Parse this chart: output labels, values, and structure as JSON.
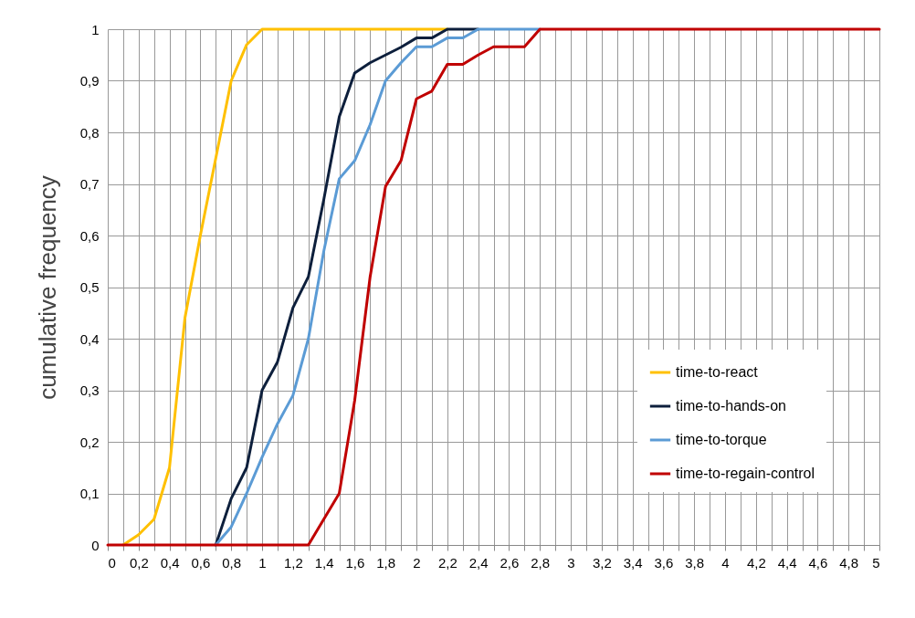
{
  "chart_data": {
    "type": "line",
    "ylabel": "cumulative frequency",
    "x": [
      0,
      0.1,
      0.2,
      0.3,
      0.4,
      0.5,
      0.6,
      0.7,
      0.8,
      0.9,
      1,
      1.1,
      1.2,
      1.3,
      1.4,
      1.5,
      1.6,
      1.7,
      1.8,
      1.9,
      2,
      2.1,
      2.2,
      2.3,
      2.4,
      2.5,
      2.6,
      2.7,
      2.8,
      2.9,
      3,
      3.1,
      3.2,
      3.3,
      3.4,
      3.5,
      3.6,
      3.7,
      3.8,
      3.9,
      4,
      4.1,
      4.2,
      4.3,
      4.4,
      4.5,
      4.6,
      4.7,
      4.8,
      4.9,
      5
    ],
    "series": [
      {
        "name": "time-to-react",
        "color": "#ffc000",
        "values": [
          null,
          0,
          0.02,
          0.05,
          0.15,
          0.44,
          0.6,
          0.75,
          0.9,
          0.97,
          1,
          1,
          1,
          1,
          1,
          1,
          1,
          1,
          1,
          1,
          1,
          1,
          1,
          null,
          null,
          null,
          null,
          null,
          null,
          null,
          null,
          null,
          null,
          null,
          null,
          null,
          null,
          null,
          null,
          null,
          null,
          null,
          null,
          null,
          null,
          null,
          null,
          null,
          null,
          null,
          null
        ]
      },
      {
        "name": "time-to-hands-on",
        "color": "#0d1f3c",
        "values": [
          null,
          null,
          null,
          null,
          null,
          null,
          null,
          0,
          0.09,
          0.15,
          0.3,
          0.355,
          0.46,
          0.52,
          0.67,
          0.83,
          0.915,
          0.935,
          0.95,
          0.965,
          0.983,
          0.983,
          1,
          1,
          1,
          null,
          null,
          null,
          null,
          null,
          null,
          null,
          null,
          null,
          null,
          null,
          null,
          null,
          null,
          null,
          null,
          null,
          null,
          null,
          null,
          null,
          null,
          null,
          null,
          null,
          null
        ]
      },
      {
        "name": "time-to-torque",
        "color": "#5b9bd5",
        "values": [
          null,
          null,
          null,
          null,
          null,
          null,
          null,
          0,
          0.035,
          0.1,
          0.17,
          0.235,
          0.29,
          0.4,
          0.57,
          0.71,
          0.745,
          0.815,
          0.9,
          0.935,
          0.966,
          0.966,
          0.983,
          0.983,
          1,
          1,
          1,
          1,
          1,
          null,
          null,
          null,
          null,
          null,
          null,
          null,
          null,
          null,
          null,
          null,
          null,
          null,
          null,
          null,
          null,
          null,
          null,
          null,
          null,
          null,
          null
        ]
      },
      {
        "name": "time-to-regain-control",
        "color": "#c00000",
        "values": [
          0,
          0,
          0,
          0,
          0,
          0,
          0,
          0,
          0,
          0,
          0,
          0,
          0,
          0,
          0.05,
          0.1,
          0.28,
          0.52,
          0.695,
          0.745,
          0.865,
          0.88,
          0.932,
          0.932,
          0.95,
          0.966,
          0.966,
          0.966,
          1,
          1,
          1,
          1,
          1,
          1,
          1,
          1,
          1,
          1,
          1,
          1,
          1,
          1,
          1,
          1,
          1,
          1,
          1,
          1,
          1,
          1,
          1
        ]
      }
    ],
    "xlim": [
      0,
      5
    ],
    "xticks": [
      0,
      {
        "value": 0.1,
        "label": null
      },
      {
        "value": 0.2,
        "label": "0,2"
      },
      {
        "value": 0.3,
        "label": null
      },
      {
        "value": 0.4,
        "label": "0,4"
      },
      {
        "value": 0.5,
        "label": null
      },
      {
        "value": 0.6,
        "label": "0,6"
      },
      {
        "value": 0.7,
        "label": null
      },
      {
        "value": 0.8,
        "label": "0,8"
      },
      {
        "value": 0.9,
        "label": null
      },
      1,
      {
        "value": 1.1,
        "label": null
      },
      {
        "value": 1.2,
        "label": "1,2"
      },
      {
        "value": 1.3,
        "label": null
      },
      {
        "value": 1.4,
        "label": "1,4"
      },
      {
        "value": 1.5,
        "label": null
      },
      {
        "value": 1.6,
        "label": "1,6"
      },
      {
        "value": 1.7,
        "label": null
      },
      {
        "value": 1.8,
        "label": "1,8"
      },
      {
        "value": 1.9,
        "label": null
      },
      2,
      {
        "value": 2.1,
        "label": null
      },
      {
        "value": 2.2,
        "label": "2,2"
      },
      {
        "value": 2.3,
        "label": null
      },
      {
        "value": 2.4,
        "label": "2,4"
      },
      {
        "value": 2.5,
        "label": null
      },
      {
        "value": 2.6,
        "label": "2,6"
      },
      {
        "value": 2.7,
        "label": null
      },
      {
        "value": 2.8,
        "label": "2,8"
      },
      {
        "value": 2.9,
        "label": null
      },
      3,
      {
        "value": 3.1,
        "label": null
      },
      {
        "value": 3.2,
        "label": "3,2"
      },
      {
        "value": 3.3,
        "label": null
      },
      {
        "value": 3.4,
        "label": "3,4"
      },
      {
        "value": 3.5,
        "label": null
      },
      {
        "value": 3.6,
        "label": "3,6"
      },
      {
        "value": 3.7,
        "label": null
      },
      {
        "value": 3.8,
        "label": "3,8"
      },
      {
        "value": 3.9,
        "label": null
      },
      4,
      {
        "value": 4.1,
        "label": null
      },
      {
        "value": 4.2,
        "label": "4,2"
      },
      {
        "value": 4.3,
        "label": null
      },
      {
        "value": 4.4,
        "label": "4,4"
      },
      {
        "value": 4.5,
        "label": null
      },
      {
        "value": 4.6,
        "label": "4,6"
      },
      {
        "value": 4.7,
        "label": null
      },
      {
        "value": 4.8,
        "label": "4,8"
      },
      {
        "value": 4.9,
        "label": null
      },
      5
    ],
    "ylim": [
      0,
      1
    ],
    "yticks": [
      0,
      {
        "value": 0.1,
        "label": "0,1"
      },
      {
        "value": 0.2,
        "label": "0,2"
      },
      {
        "value": 0.3,
        "label": "0,3"
      },
      {
        "value": 0.4,
        "label": "0,4"
      },
      {
        "value": 0.5,
        "label": "0,5"
      },
      {
        "value": 0.6,
        "label": "0,6"
      },
      {
        "value": 0.7,
        "label": "0,7"
      },
      {
        "value": 0.8,
        "label": "0,8"
      },
      {
        "value": 0.9,
        "label": "0,9"
      },
      1
    ],
    "grid": true,
    "legend": "bottom right",
    "marker": "none",
    "line_style": "solid"
  }
}
